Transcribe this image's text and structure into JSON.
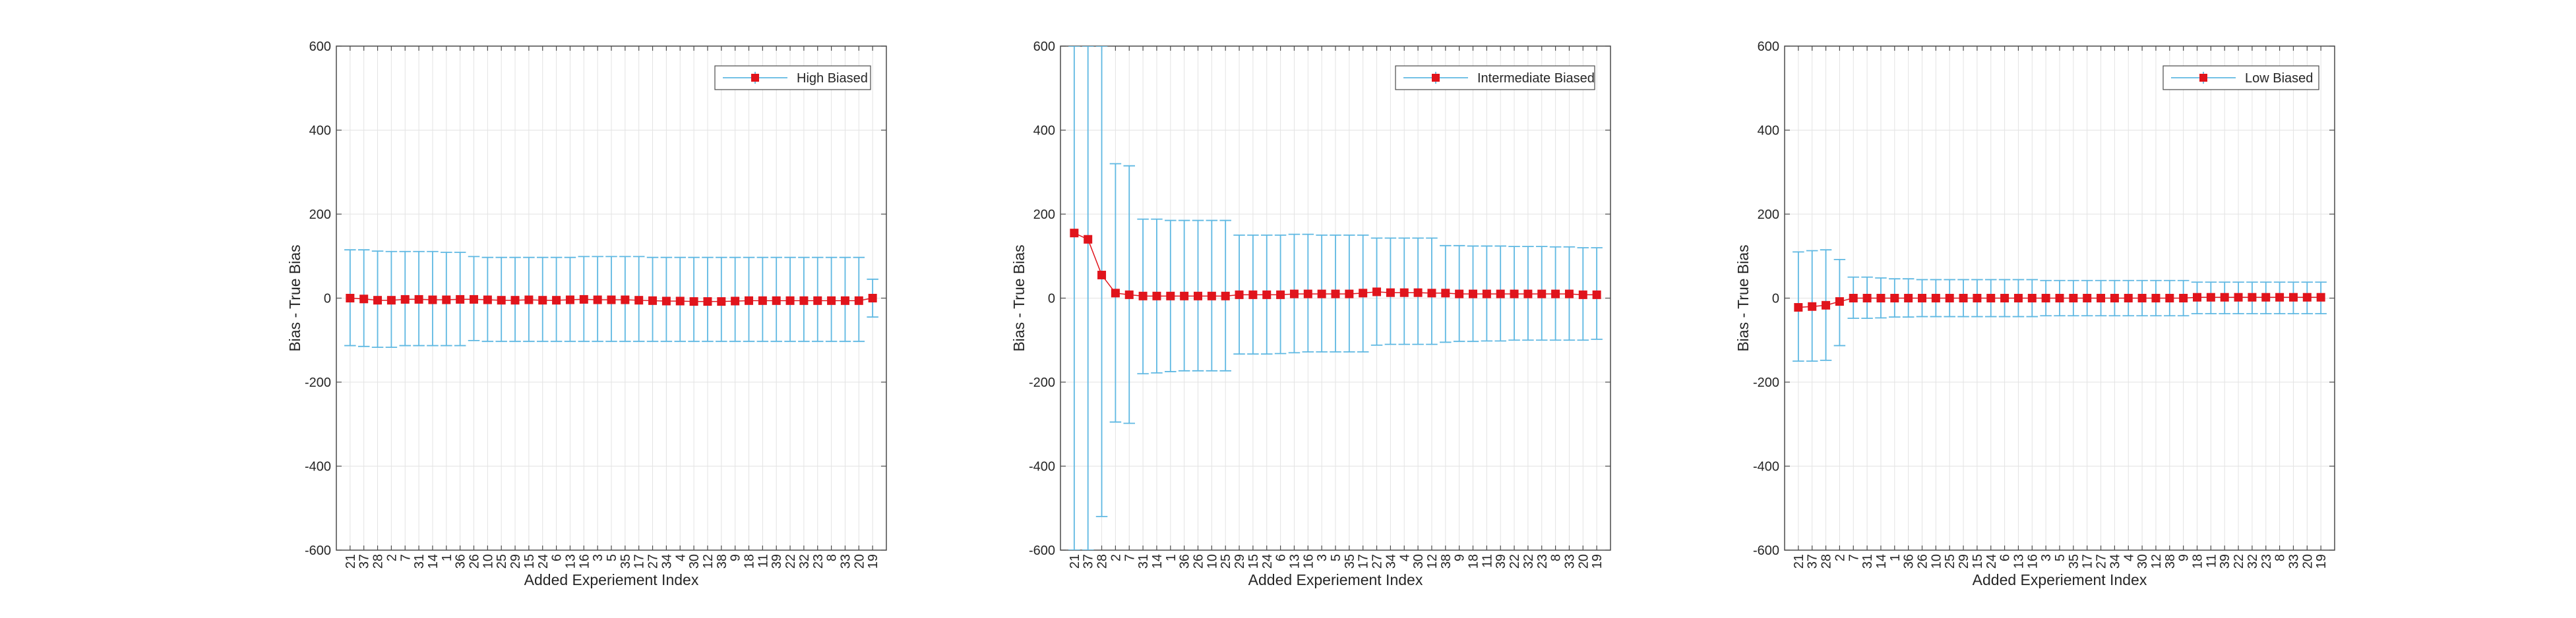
{
  "colors": {
    "errorbar": "#5fb8e2",
    "marker": "#e0141c",
    "grid": "#e3e3e3",
    "axis": "#4a4a4a",
    "text": "#262626"
  },
  "chart_data": [
    {
      "type": "line",
      "title": "",
      "xlabel": "Added Experiement Index",
      "ylabel": "Bias - True Bias",
      "ylim": [
        -600,
        600
      ],
      "yticks": [
        -600,
        -400,
        -200,
        0,
        200,
        400,
        600
      ],
      "ytick_labels": [
        "-600",
        "-400",
        "-200",
        "0",
        "200",
        "400",
        "600"
      ],
      "grid": true,
      "legend_position": "top-right",
      "categories": [
        "21",
        "37",
        "28",
        "2",
        "7",
        "31",
        "14",
        "1",
        "36",
        "26",
        "10",
        "25",
        "29",
        "15",
        "24",
        "6",
        "13",
        "16",
        "3",
        "5",
        "35",
        "17",
        "27",
        "34",
        "4",
        "30",
        "12",
        "38",
        "9",
        "18",
        "11",
        "39",
        "22",
        "32",
        "23",
        "8",
        "33",
        "20",
        "19"
      ],
      "series": [
        {
          "name": "High Biased",
          "values": [
            0,
            -2,
            -5,
            -5,
            -3,
            -3,
            -4,
            -4,
            -3,
            -3,
            -4,
            -5,
            -5,
            -4,
            -5,
            -5,
            -4,
            -3,
            -4,
            -4,
            -4,
            -5,
            -6,
            -7,
            -7,
            -8,
            -8,
            -8,
            -7,
            -6,
            -6,
            -6,
            -6,
            -6,
            -6,
            -6,
            -6,
            -6,
            0
          ],
          "err_upper": [
            115,
            115,
            112,
            111,
            111,
            111,
            111,
            109,
            109,
            99,
            97,
            97,
            97,
            97,
            97,
            97,
            97,
            99,
            99,
            99,
            99,
            99,
            97,
            97,
            97,
            97,
            97,
            97,
            97,
            97,
            97,
            97,
            97,
            97,
            97,
            97,
            97,
            97,
            45
          ],
          "err_lower": [
            -113,
            -115,
            -117,
            -117,
            -113,
            -113,
            -113,
            -113,
            -113,
            -101,
            -103,
            -103,
            -103,
            -103,
            -103,
            -103,
            -103,
            -103,
            -103,
            -103,
            -103,
            -103,
            -103,
            -103,
            -103,
            -103,
            -103,
            -103,
            -103,
            -103,
            -103,
            -103,
            -103,
            -103,
            -103,
            -103,
            -103,
            -103,
            -45
          ]
        }
      ]
    },
    {
      "type": "line",
      "title": "",
      "xlabel": "Added Experiement Index",
      "ylabel": "Bias - True Bias",
      "ylim": [
        -600,
        600
      ],
      "yticks": [
        -600,
        -400,
        -200,
        0,
        200,
        400,
        600
      ],
      "ytick_labels": [
        "-600",
        "-400",
        "-200",
        "0",
        "200",
        "400",
        "600"
      ],
      "grid": true,
      "legend_position": "top-right",
      "categories": [
        "21",
        "37",
        "28",
        "2",
        "7",
        "31",
        "14",
        "1",
        "36",
        "26",
        "10",
        "25",
        "29",
        "15",
        "24",
        "6",
        "13",
        "16",
        "3",
        "5",
        "35",
        "17",
        "27",
        "34",
        "4",
        "30",
        "12",
        "38",
        "9",
        "18",
        "11",
        "39",
        "22",
        "32",
        "23",
        "8",
        "33",
        "20",
        "19"
      ],
      "series": [
        {
          "name": "Intermediate Biased",
          "values": [
            155,
            140,
            55,
            12,
            8,
            5,
            5,
            5,
            5,
            5,
            5,
            5,
            8,
            8,
            8,
            8,
            10,
            10,
            10,
            10,
            10,
            12,
            15,
            13,
            13,
            13,
            12,
            12,
            10,
            10,
            10,
            10,
            10,
            10,
            10,
            10,
            10,
            8,
            8
          ],
          "err_upper": [
            600,
            600,
            600,
            320,
            315,
            188,
            188,
            185,
            185,
            185,
            185,
            185,
            150,
            150,
            150,
            150,
            152,
            152,
            150,
            150,
            150,
            150,
            143,
            143,
            143,
            143,
            143,
            125,
            125,
            124,
            124,
            124,
            123,
            123,
            123,
            122,
            122,
            120,
            120
          ],
          "err_lower": [
            -600,
            -600,
            -520,
            -295,
            -298,
            -180,
            -178,
            -175,
            -173,
            -173,
            -173,
            -173,
            -133,
            -133,
            -133,
            -132,
            -130,
            -128,
            -128,
            -128,
            -128,
            -128,
            -112,
            -110,
            -110,
            -110,
            -110,
            -105,
            -103,
            -103,
            -102,
            -102,
            -100,
            -100,
            -100,
            -100,
            -100,
            -100,
            -98
          ]
        }
      ]
    },
    {
      "type": "line",
      "title": "",
      "xlabel": "Added Experiement Index",
      "ylabel": "Bias - True Bias",
      "ylim": [
        -600,
        600
      ],
      "yticks": [
        -600,
        -400,
        -200,
        0,
        200,
        400,
        600
      ],
      "ytick_labels": [
        "-600",
        "-400",
        "-200",
        "0",
        "200",
        "400",
        "600"
      ],
      "grid": true,
      "legend_position": "top-right",
      "categories": [
        "21",
        "37",
        "28",
        "2",
        "7",
        "31",
        "14",
        "1",
        "36",
        "26",
        "10",
        "25",
        "29",
        "15",
        "24",
        "6",
        "13",
        "16",
        "3",
        "5",
        "35",
        "17",
        "27",
        "34",
        "4",
        "30",
        "12",
        "38",
        "9",
        "18",
        "11",
        "39",
        "22",
        "32",
        "23",
        "8",
        "33",
        "20",
        "19"
      ],
      "series": [
        {
          "name": "Low Biased",
          "values": [
            -22,
            -20,
            -17,
            -8,
            0,
            0,
            0,
            0,
            0,
            0,
            0,
            0,
            0,
            0,
            0,
            0,
            0,
            0,
            0,
            0,
            0,
            0,
            0,
            0,
            0,
            0,
            0,
            0,
            0,
            2,
            2,
            2,
            2,
            2,
            2,
            2,
            2,
            2,
            2
          ],
          "err_upper": [
            110,
            113,
            115,
            92,
            50,
            50,
            48,
            46,
            46,
            44,
            44,
            44,
            44,
            44,
            44,
            44,
            44,
            44,
            42,
            42,
            42,
            42,
            42,
            42,
            42,
            42,
            42,
            42,
            42,
            38,
            38,
            38,
            38,
            38,
            38,
            38,
            38,
            38,
            38
          ],
          "err_lower": [
            -150,
            -150,
            -148,
            -113,
            -48,
            -48,
            -47,
            -45,
            -45,
            -44,
            -44,
            -44,
            -44,
            -44,
            -44,
            -44,
            -44,
            -44,
            -42,
            -42,
            -42,
            -42,
            -42,
            -42,
            -42,
            -42,
            -42,
            -42,
            -42,
            -37,
            -37,
            -37,
            -37,
            -37,
            -37,
            -37,
            -37,
            -37,
            -37
          ]
        }
      ]
    }
  ]
}
